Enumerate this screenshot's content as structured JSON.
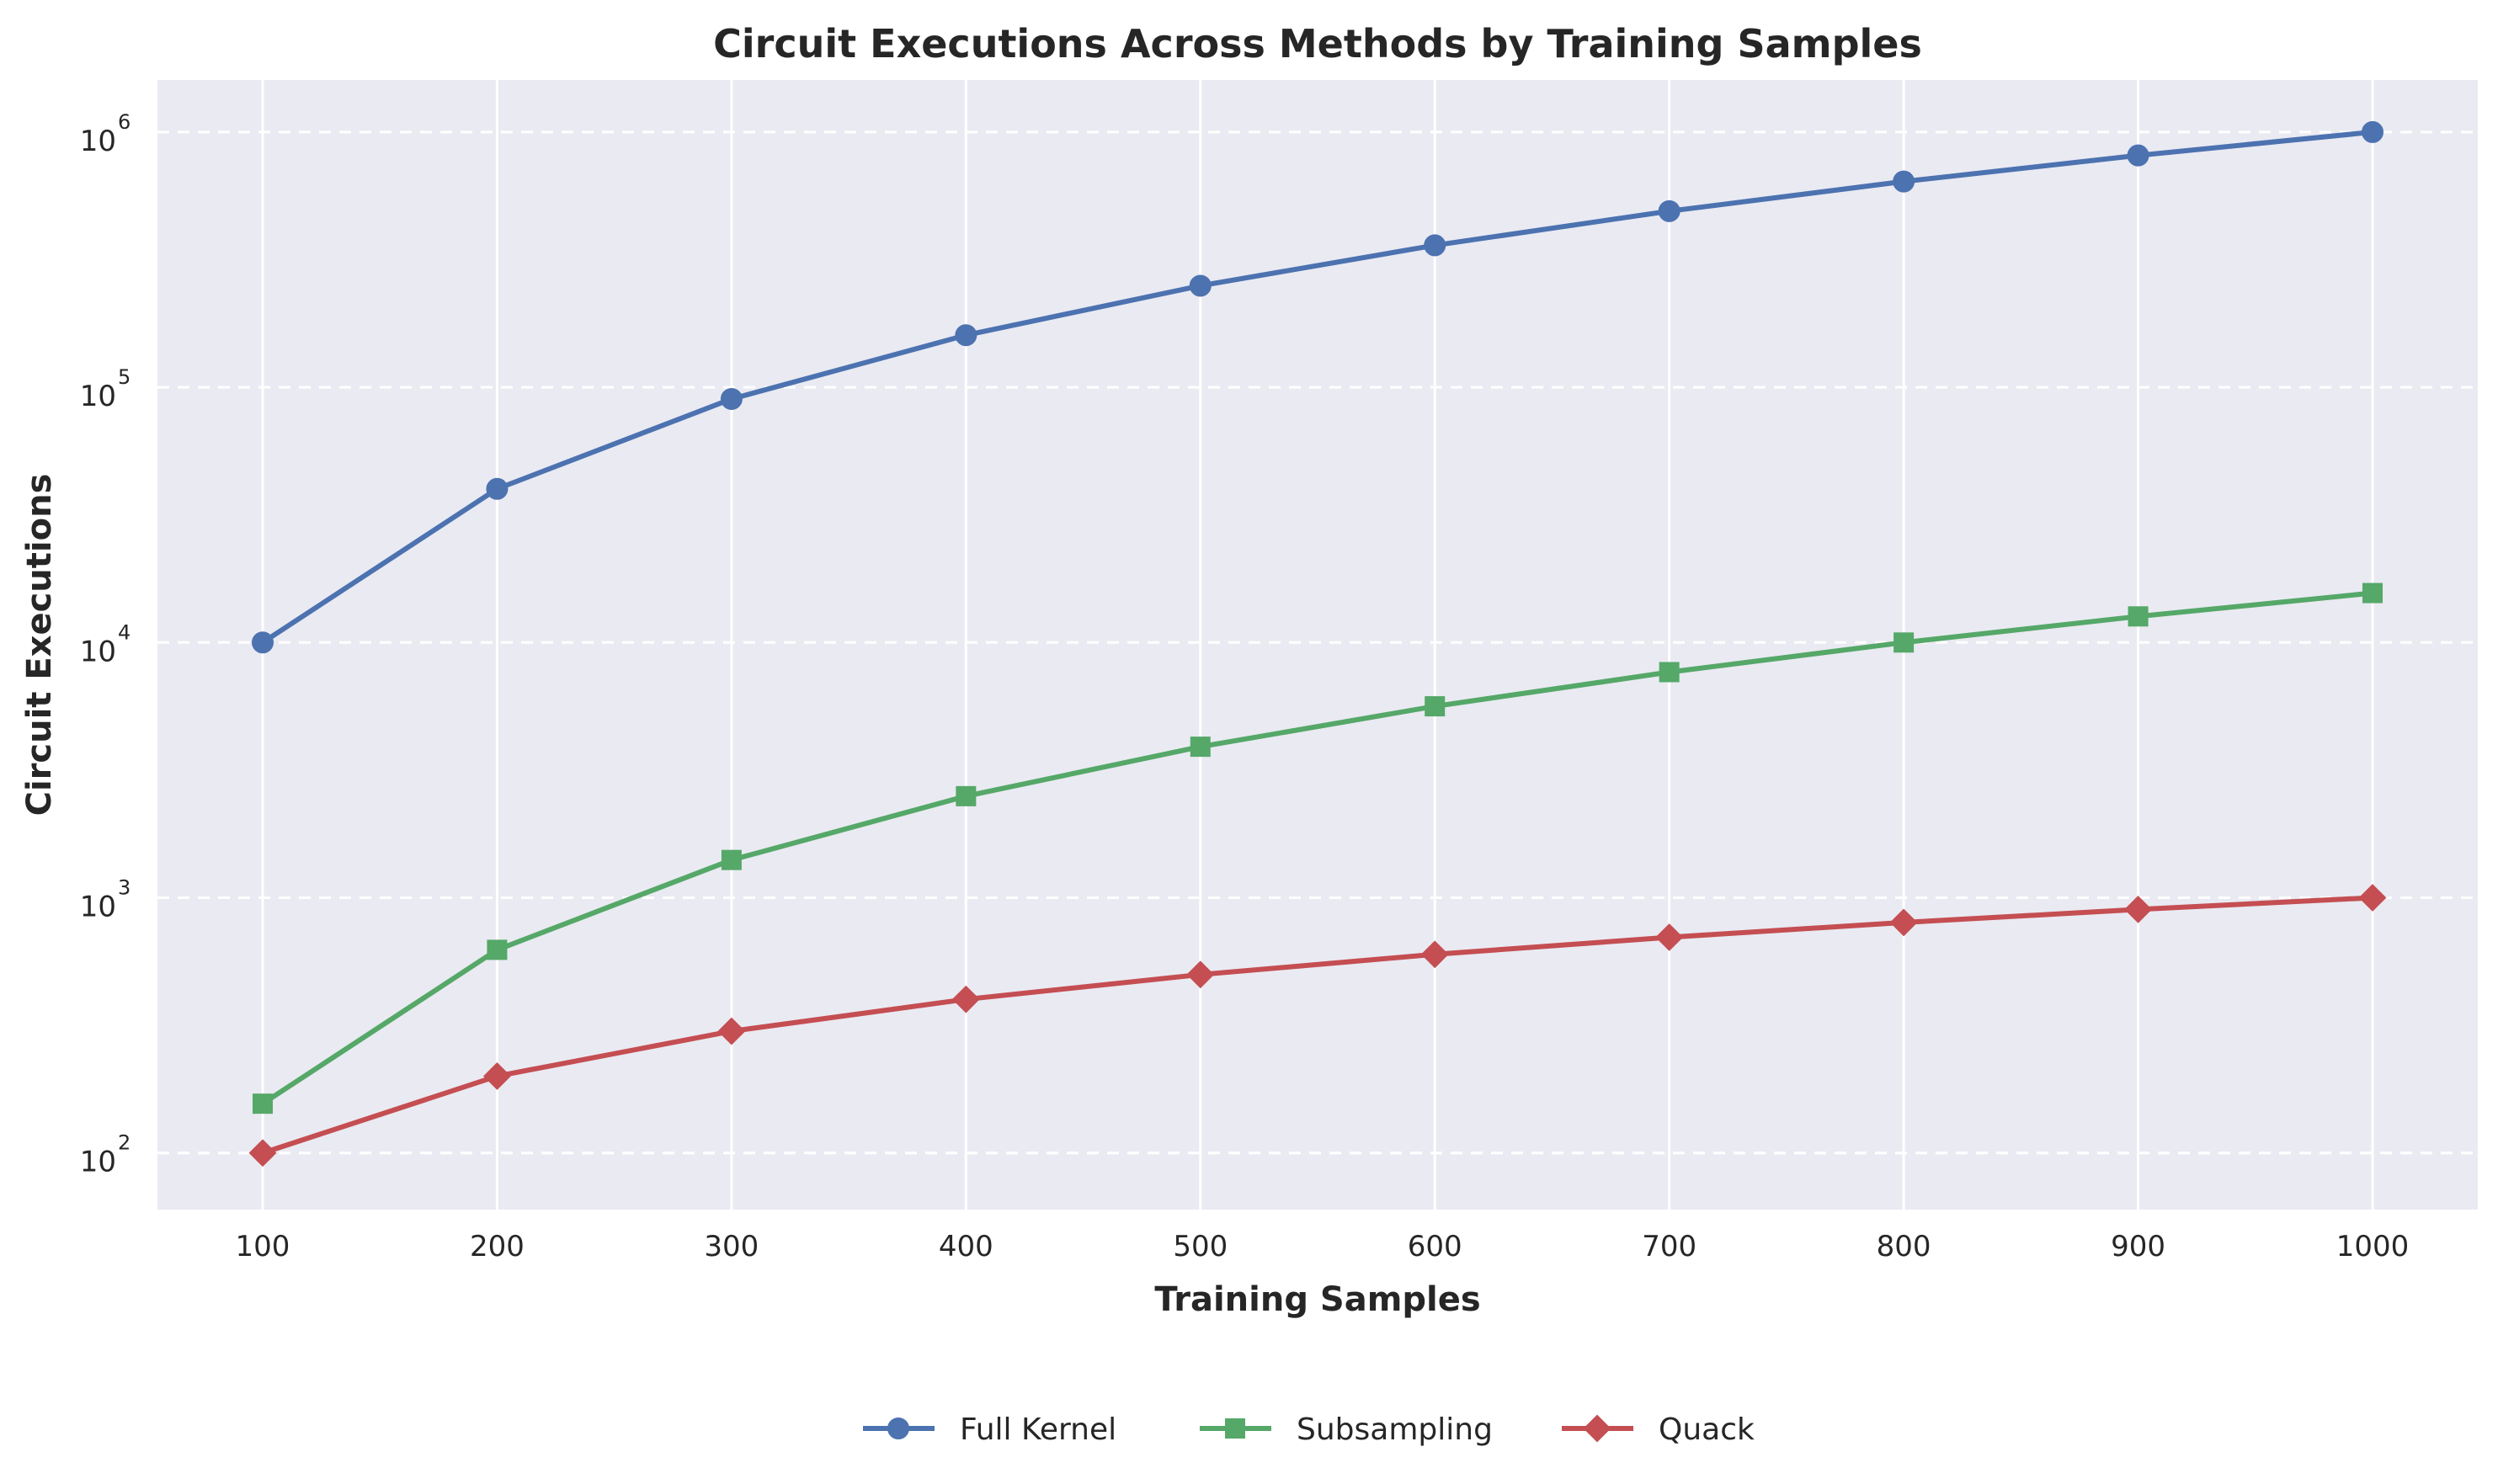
{
  "chart_data": {
    "type": "line",
    "title": "Circuit Executions Across Methods by Training Samples",
    "xlabel": "Training Samples",
    "ylabel": "Circuit Executions",
    "x": [
      100,
      200,
      300,
      400,
      500,
      600,
      700,
      800,
      900,
      1000
    ],
    "x_ticks": [
      "100",
      "200",
      "300",
      "400",
      "500",
      "600",
      "700",
      "800",
      "900",
      "1000"
    ],
    "y_scale": "log",
    "ylim": [
      60,
      1600000
    ],
    "y_ticks": [
      {
        "value": 100,
        "base": "10",
        "exp": "2"
      },
      {
        "value": 1000,
        "base": "10",
        "exp": "3"
      },
      {
        "value": 10000,
        "base": "10",
        "exp": "4"
      },
      {
        "value": 100000,
        "base": "10",
        "exp": "5"
      },
      {
        "value": 1000000,
        "base": "10",
        "exp": "6"
      }
    ],
    "grid": true,
    "legend_position": "bottom-center",
    "background": "#eaeaf2",
    "series": [
      {
        "name": "Full Kernel",
        "color": "#4c72b0",
        "marker": "circle",
        "values": [
          10000,
          40000,
          90000,
          160000,
          250000,
          360000,
          490000,
          640000,
          810000,
          1000000
        ]
      },
      {
        "name": "Subsampling",
        "color": "#55a868",
        "marker": "square",
        "values": [
          156,
          625,
          1406,
          2500,
          3906,
          5625,
          7656,
          10000,
          12656,
          15625
        ]
      },
      {
        "name": "Quack",
        "color": "#c44e52",
        "marker": "diamond",
        "values": [
          100,
          200,
          300,
          400,
          500,
          600,
          700,
          800,
          900,
          1000
        ]
      }
    ]
  }
}
